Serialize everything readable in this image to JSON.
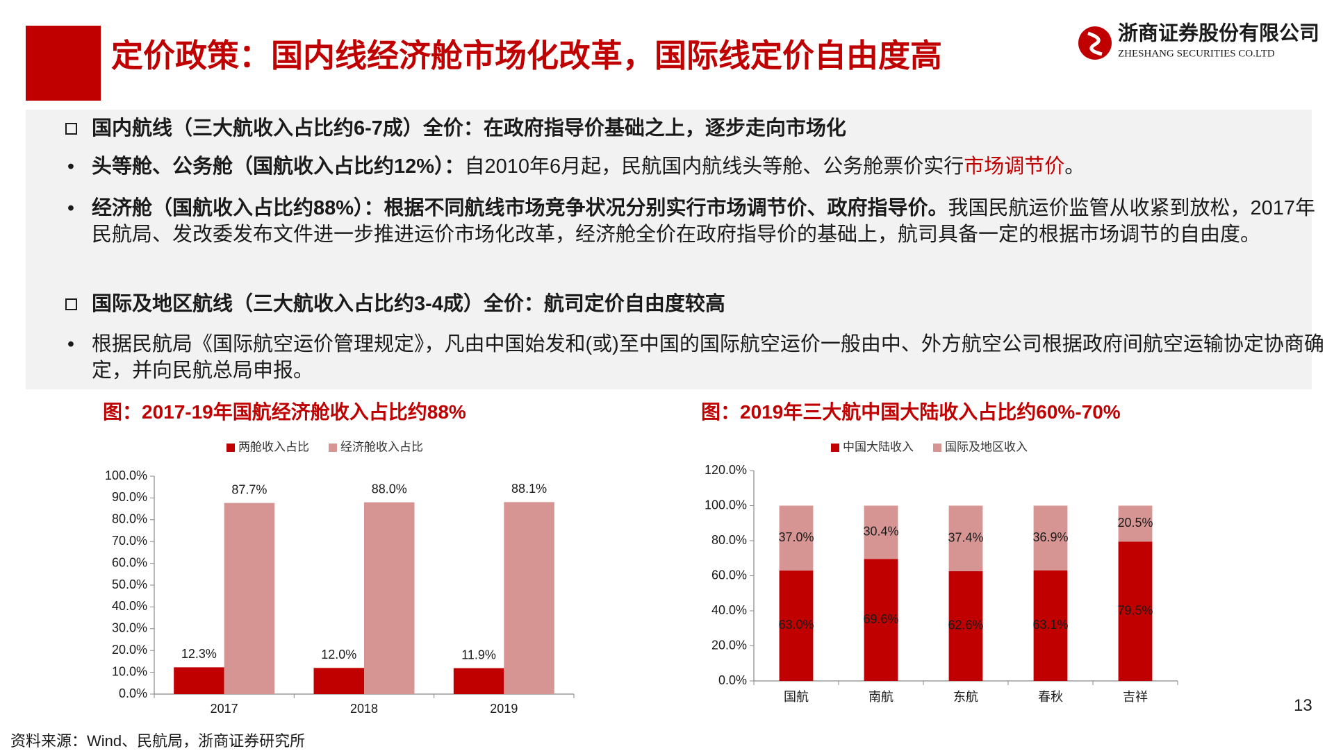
{
  "header": {
    "title": "定价政策：国内线经济舱市场化改革，国际线定价自由度高",
    "company_cn": "浙商证券股份有限公司",
    "company_en": "ZHESHANG SECURITIES CO.LTD"
  },
  "content": {
    "items": [
      {
        "runs": [
          "国内航线（三大航收入占比约6-7成）全价：在政府指导价基础之上，逐步走向市场化"
        ]
      },
      {
        "runs": [
          "头等舱、公务舱（国航收入占比约12%）：",
          "自2010年6月起，民航国内航线头等舱、公务舱票价实行",
          "市场调节价",
          "。"
        ]
      },
      {
        "runs": [
          "经济舱（国航收入占比约88%）：根据不同航线市场竞争状况分别实行市场调节价、政府指导价。",
          "我国民航运价监管从收紧到放松，2017年民航局、发改委发布文件进一步推进运价市场化改革，经济舱全价在政府指导价的基础上，航司具备一定的根据市场调节的自由度。"
        ]
      },
      {
        "runs": [
          "国际及地区航线（三大航收入占比约3-4成）全价：航司定价自由度较高"
        ]
      },
      {
        "runs": [
          "根据民航局《国际航空运价管理规定》，凡由中国始发和(或)至中国的国际航空运价一般由中、外方航空公司根据政府间航空运输协定协商确定，并向民航总局申报。"
        ]
      }
    ]
  },
  "chart_data": [
    {
      "type": "bar",
      "title": "图：2017-19年国航经济舱收入占比约88%",
      "stacked": false,
      "categories": [
        "2017",
        "2018",
        "2019"
      ],
      "series": [
        {
          "name": "两舱收入占比",
          "color": "#c00000",
          "values": [
            12.3,
            12.0,
            11.9
          ],
          "value_labels": [
            "12.3%",
            "12.0%",
            "11.9%"
          ]
        },
        {
          "name": "经济舱收入占比",
          "color": "#d69593",
          "values": [
            87.7,
            88.0,
            88.1
          ],
          "value_labels": [
            "87.7%",
            "88.0%",
            "88.1%"
          ]
        }
      ],
      "ylim": [
        0,
        100
      ],
      "yticks": [
        {
          "value": 0,
          "label": "0.0%"
        },
        {
          "value": 10,
          "label": "10.0%"
        },
        {
          "value": 20,
          "label": "20.0%"
        },
        {
          "value": 30,
          "label": "30.0%"
        },
        {
          "value": 40,
          "label": "40.0%"
        },
        {
          "value": 50,
          "label": "50.0%"
        },
        {
          "value": 60,
          "label": "60.0%"
        },
        {
          "value": 70,
          "label": "70.0%"
        },
        {
          "value": 80,
          "label": "80.0%"
        },
        {
          "value": 90,
          "label": "90.0%"
        },
        {
          "value": 100,
          "label": "100.0%"
        }
      ],
      "grid": false,
      "legend": "top"
    },
    {
      "type": "bar",
      "title": "图：2019年三大航中国大陆收入占比约60%-70%",
      "stacked": true,
      "categories": [
        "国航",
        "南航",
        "东航",
        "春秋",
        "吉祥"
      ],
      "series": [
        {
          "name": "中国大陆收入",
          "color": "#c00000",
          "values": [
            63.0,
            69.6,
            62.6,
            63.1,
            79.5
          ],
          "value_labels": [
            "63.0%",
            "69.6%",
            "62.6%",
            "63.1%",
            "79.5%"
          ]
        },
        {
          "name": "国际及地区收入",
          "color": "#d69593",
          "values": [
            37.0,
            30.4,
            37.4,
            36.9,
            20.5
          ],
          "value_labels": [
            "37.0%",
            "30.4%",
            "37.4%",
            "36.9%",
            "20.5%"
          ]
        }
      ],
      "ylim": [
        0,
        120
      ],
      "yticks": [
        {
          "value": 0,
          "label": "0.0%"
        },
        {
          "value": 20,
          "label": "20.0%"
        },
        {
          "value": 40,
          "label": "40.0%"
        },
        {
          "value": 60,
          "label": "60.0%"
        },
        {
          "value": 80,
          "label": "80.0%"
        },
        {
          "value": 100,
          "label": "100.0%"
        },
        {
          "value": 120,
          "label": "120.0%"
        }
      ],
      "grid": false,
      "legend": "top"
    }
  ],
  "footer": {
    "source": "资料来源：Wind、民航局，浙商证券研究所",
    "page": 13
  }
}
